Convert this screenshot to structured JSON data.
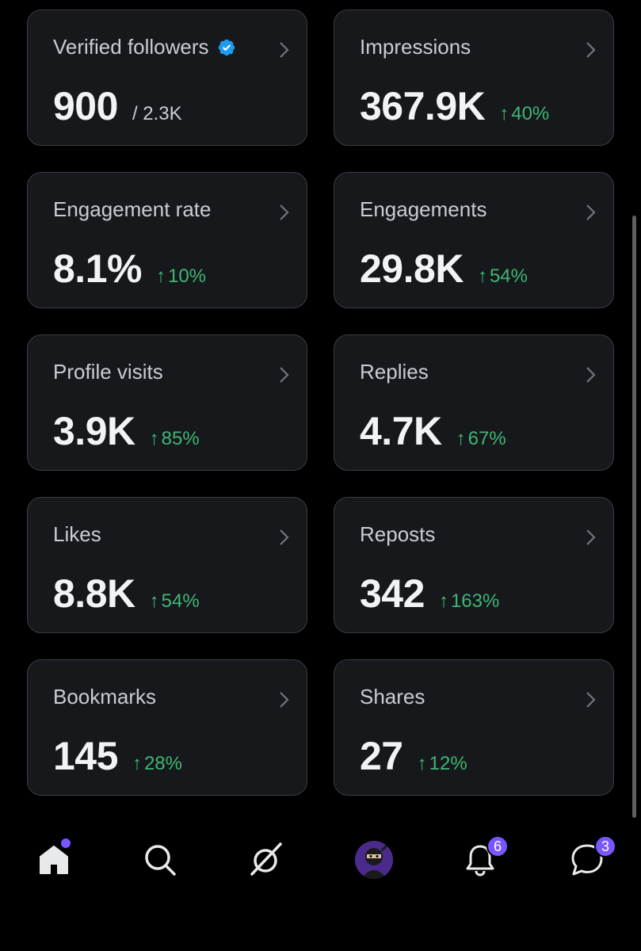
{
  "cards": [
    {
      "title": "Verified followers",
      "value": "900",
      "sub": "/ 2.3K",
      "arrow": "",
      "change": ""
    },
    {
      "title": "Impressions",
      "value": "367.9K",
      "sub": "",
      "arrow": "↑",
      "change": "40%"
    },
    {
      "title": "Engagement rate",
      "value": "8.1%",
      "sub": "",
      "arrow": "↑",
      "change": "10%"
    },
    {
      "title": "Engagements",
      "value": "29.8K",
      "sub": "",
      "arrow": "↑",
      "change": "54%"
    },
    {
      "title": "Profile visits",
      "value": "3.9K",
      "sub": "",
      "arrow": "↑",
      "change": "85%"
    },
    {
      "title": "Replies",
      "value": "4.7K",
      "sub": "",
      "arrow": "↑",
      "change": "67%"
    },
    {
      "title": "Likes",
      "value": "8.8K",
      "sub": "",
      "arrow": "↑",
      "change": "54%"
    },
    {
      "title": "Reposts",
      "value": "342",
      "sub": "",
      "arrow": "↑",
      "change": "163%"
    },
    {
      "title": "Bookmarks",
      "value": "145",
      "sub": "",
      "arrow": "↑",
      "change": "28%"
    },
    {
      "title": "Shares",
      "value": "27",
      "sub": "",
      "arrow": "↑",
      "change": "12%"
    }
  ],
  "tabbar": {
    "home_icon": "home-icon",
    "search_icon": "search-icon",
    "grok_icon": "grok-icon",
    "notifications_badge": "6",
    "messages_badge": "3"
  },
  "colors": {
    "background": "#000000",
    "card_bg": "#16181c",
    "card_border": "#3a3d42",
    "positive": "#3fb774",
    "accent": "#7856ff",
    "verified": "#1d9bf0"
  }
}
